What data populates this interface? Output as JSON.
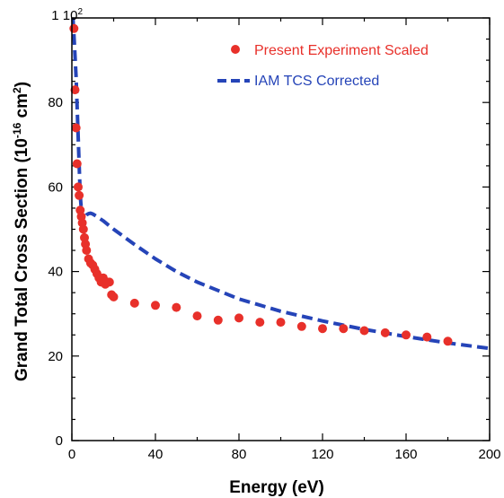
{
  "chart_data": {
    "type": "scatter",
    "xlabel": "Energy (eV)",
    "ylabel": {
      "prefix": "Grand Total Cross Section (10",
      "exp1": "-16",
      "mid": " cm",
      "exp2": "2",
      "suffix": ")"
    },
    "xlim": [
      0,
      200
    ],
    "ylim": [
      0,
      100
    ],
    "x_ticks": [
      0,
      40,
      80,
      120,
      160,
      200
    ],
    "y_ticks": [
      0,
      20,
      40,
      60,
      80
    ],
    "y_top_label": {
      "base": "1 10",
      "exp": "2"
    },
    "legend_position": "top-right",
    "series": [
      {
        "name": "Present Experiment Scaled",
        "kind": "points",
        "color": "#e8302a",
        "x": [
          1,
          1.5,
          2,
          2.5,
          3,
          3.5,
          4,
          4.5,
          5,
          5.5,
          6,
          6.5,
          7,
          8,
          9,
          10,
          11,
          12,
          13,
          14,
          15,
          16,
          17,
          18,
          19,
          20,
          30,
          40,
          50,
          60,
          70,
          80,
          90,
          100,
          110,
          120,
          130,
          140,
          150,
          160,
          170,
          180
        ],
        "y": [
          97.5,
          83,
          74,
          65.5,
          60,
          58,
          54.5,
          53,
          51.5,
          50,
          48,
          46.5,
          45,
          43,
          42,
          41.5,
          40.5,
          39.5,
          38.5,
          37.5,
          38.5,
          37,
          37.5,
          37.5,
          34.5,
          34,
          32.5,
          32,
          31.5,
          29.5,
          28.5,
          29,
          28,
          28,
          27,
          26.5,
          26.5,
          26,
          25.5,
          25,
          24.5,
          23.5
        ]
      },
      {
        "name": "IAM TCS Corrected",
        "kind": "dashed-line",
        "color": "#2544b8",
        "x": [
          0.5,
          1,
          2,
          3,
          4,
          5,
          6,
          7,
          8,
          9,
          10,
          12,
          15,
          20,
          30,
          40,
          50,
          60,
          80,
          100,
          120,
          140,
          160,
          180,
          200
        ],
        "y": [
          100,
          96,
          86,
          72,
          58,
          52,
          52.8,
          53.4,
          53.7,
          53.8,
          53.6,
          53,
          52,
          50,
          46.4,
          43,
          40,
          37.5,
          33.5,
          30.6,
          28.3,
          26.3,
          24.6,
          23.1,
          21.8
        ]
      }
    ]
  }
}
